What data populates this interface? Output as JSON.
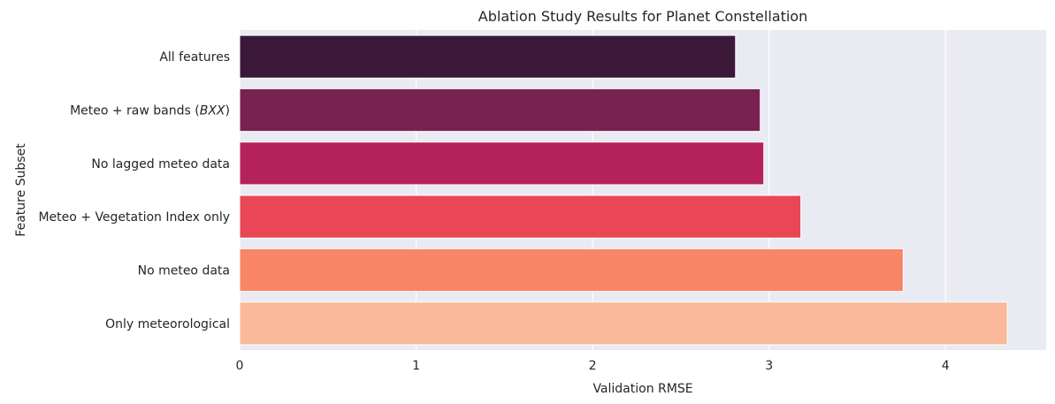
{
  "chart_data": {
    "type": "bar",
    "orientation": "horizontal",
    "title": "Ablation Study Results for Planet Constellation",
    "xlabel": "Validation RMSE",
    "ylabel": "Feature Subset",
    "categories": [
      "All features",
      "Meteo + raw bands (BXX)",
      "No lagged meteo data",
      "Meteo + Vegetation Index only",
      "No meteo data",
      "Only meteorological"
    ],
    "category_math": [
      null,
      {
        "prefix": "Meteo + raw bands (",
        "math": "BXX",
        "suffix": ")"
      },
      null,
      null,
      null,
      null
    ],
    "values": [
      2.81,
      2.95,
      2.97,
      3.18,
      3.76,
      4.35
    ],
    "xlim": [
      0,
      4.57
    ],
    "xticks": [
      0,
      1,
      2,
      3,
      4
    ],
    "grid": true,
    "background": "#eaeaf2",
    "colors": [
      "#3b1837",
      "#782251",
      "#b5225b",
      "#e94656",
      "#f78566",
      "#f9b99a"
    ]
  }
}
